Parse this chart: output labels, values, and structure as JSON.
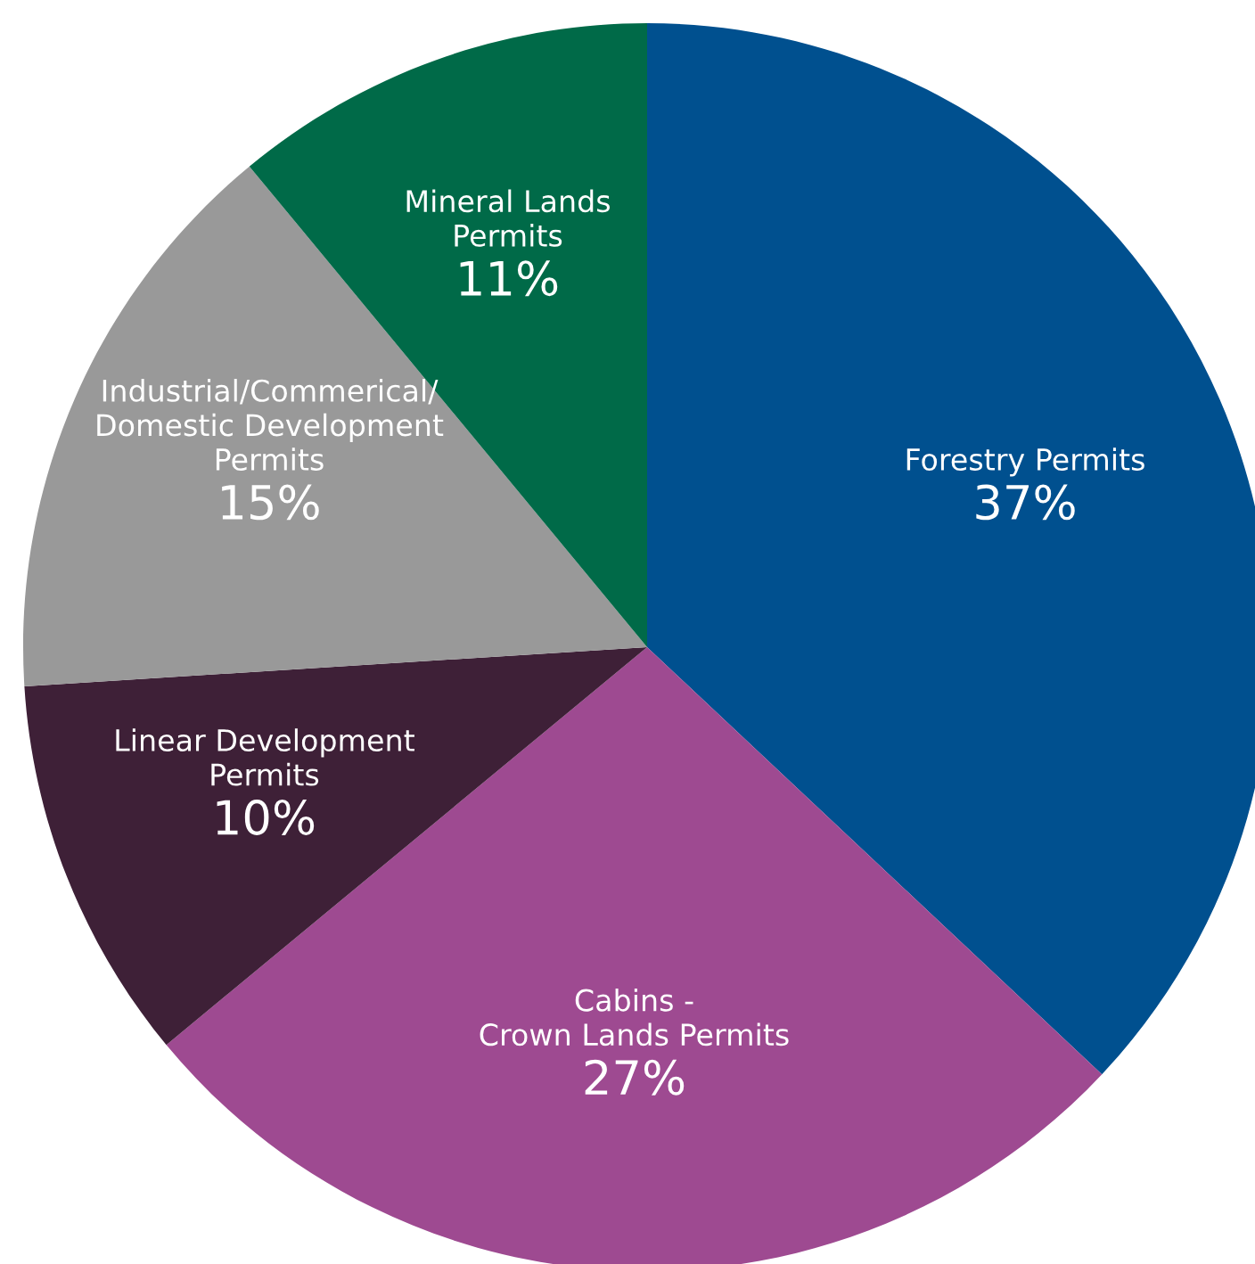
{
  "chart_data": {
    "type": "pie",
    "categories": [
      "Forestry Permits",
      "Cabins -\nCrown Lands Permits",
      "Linear Development\nPermits",
      "Industrial/Commerical/\nDomestic Development\nPermits",
      "Mineral Lands\nPermits"
    ],
    "values": [
      37,
      27,
      10,
      15,
      11
    ],
    "value_labels": [
      "37%",
      "27%",
      "10%",
      "15%",
      "11%"
    ],
    "colors": [
      "#00508f",
      "#9e4a91",
      "#3e2037",
      "#999999",
      "#006a48"
    ]
  }
}
